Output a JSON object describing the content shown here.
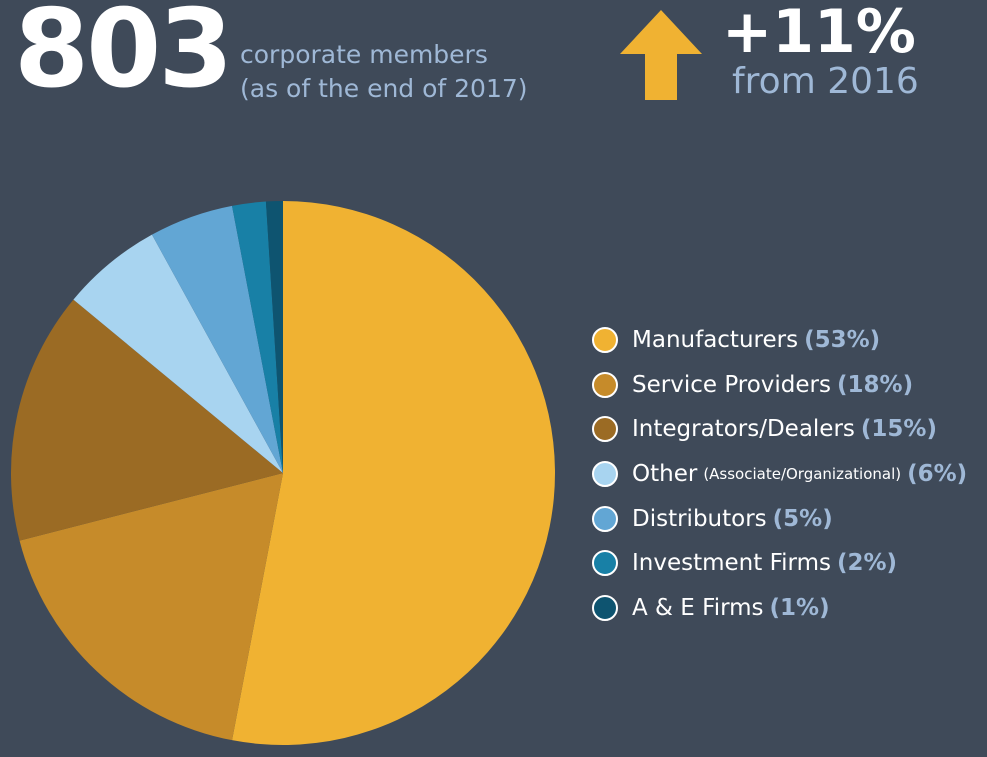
{
  "header": {
    "count": "803",
    "count_caption_line1": "corporate members",
    "count_caption_line2": "(as of the end of 2017)",
    "growth_value": "+11%",
    "growth_caption": "from 2016",
    "arrow_icon": "up-arrow-icon",
    "arrow_color": "#f0b232"
  },
  "chart_data": {
    "type": "pie",
    "unit": "%",
    "slices": [
      {
        "label": "Manufacturers",
        "sublabel": "",
        "percent_label": "(53%)",
        "value": 53,
        "color": "#f0b232"
      },
      {
        "label": "Service Providers",
        "sublabel": "",
        "percent_label": "(18%)",
        "value": 18,
        "color": "#c68b2a"
      },
      {
        "label": "Integrators/Dealers",
        "sublabel": "",
        "percent_label": "(15%)",
        "value": 15,
        "color": "#9b6b24"
      },
      {
        "label": "Other",
        "sublabel": "(Associate/Organizational)",
        "percent_label": "(6%)",
        "value": 6,
        "color": "#a8d4f0"
      },
      {
        "label": "Distributors",
        "sublabel": "",
        "percent_label": "(5%)",
        "value": 5,
        "color": "#62a6d4"
      },
      {
        "label": "Investment Firms",
        "sublabel": "",
        "percent_label": "(2%)",
        "value": 2,
        "color": "#1880a6"
      },
      {
        "label": "A & E Firms",
        "sublabel": "",
        "percent_label": "(1%)",
        "value": 1,
        "color": "#0e5470"
      }
    ],
    "legend_position": "right"
  },
  "colors": {
    "background": "#3f4a59",
    "accent_text": "#9fb8d6"
  }
}
